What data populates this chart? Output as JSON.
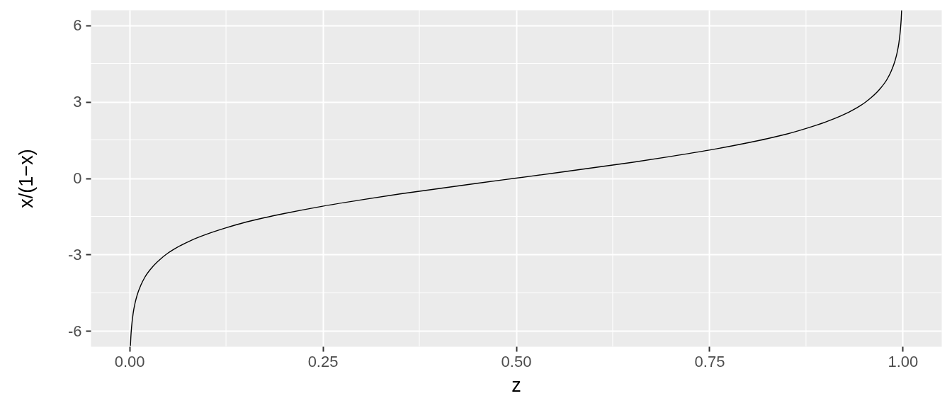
{
  "chart_data": {
    "type": "line",
    "xlabel": "z",
    "ylabel": "x/(1−x)",
    "x": [
      0.0014,
      0.002,
      0.003,
      0.005,
      0.0075,
      0.01,
      0.015,
      0.02,
      0.03,
      0.04,
      0.05,
      0.06,
      0.08,
      0.1,
      0.125,
      0.15,
      0.175,
      0.2,
      0.25,
      0.3,
      0.35,
      0.4,
      0.45,
      0.5,
      0.55,
      0.6,
      0.65,
      0.7,
      0.75,
      0.8,
      0.825,
      0.85,
      0.875,
      0.9,
      0.92,
      0.94,
      0.95,
      0.96,
      0.97,
      0.98,
      0.985,
      0.99,
      0.9925,
      0.995,
      0.997,
      0.998,
      0.9986
    ],
    "series": [
      {
        "color": "#000000",
        "values": [
          -6.57,
          -6.21,
          -5.81,
          -5.29,
          -4.89,
          -4.6,
          -4.19,
          -3.89,
          -3.48,
          -3.18,
          -2.94,
          -2.75,
          -2.44,
          -2.2,
          -1.95,
          -1.73,
          -1.55,
          -1.39,
          -1.1,
          -0.85,
          -0.62,
          -0.41,
          -0.2,
          0,
          0.2,
          0.41,
          0.62,
          0.85,
          1.1,
          1.39,
          1.55,
          1.73,
          1.95,
          2.2,
          2.44,
          2.75,
          2.94,
          3.18,
          3.48,
          3.89,
          4.19,
          4.6,
          4.89,
          5.29,
          5.81,
          6.21,
          6.57
        ]
      }
    ],
    "xlim": [
      -0.05,
      1.05
    ],
    "ylim": [
      -6.6,
      6.6
    ],
    "xticks": [
      {
        "value": 0,
        "label": "0.00"
      },
      {
        "value": 0.25,
        "label": "0.25"
      },
      {
        "value": 0.5,
        "label": "0.50"
      },
      {
        "value": 0.75,
        "label": "0.75"
      },
      {
        "value": 1,
        "label": "1.00"
      }
    ],
    "yticks": [
      -6,
      -3,
      0,
      3,
      6
    ],
    "grid": true,
    "line_style": "solid"
  }
}
